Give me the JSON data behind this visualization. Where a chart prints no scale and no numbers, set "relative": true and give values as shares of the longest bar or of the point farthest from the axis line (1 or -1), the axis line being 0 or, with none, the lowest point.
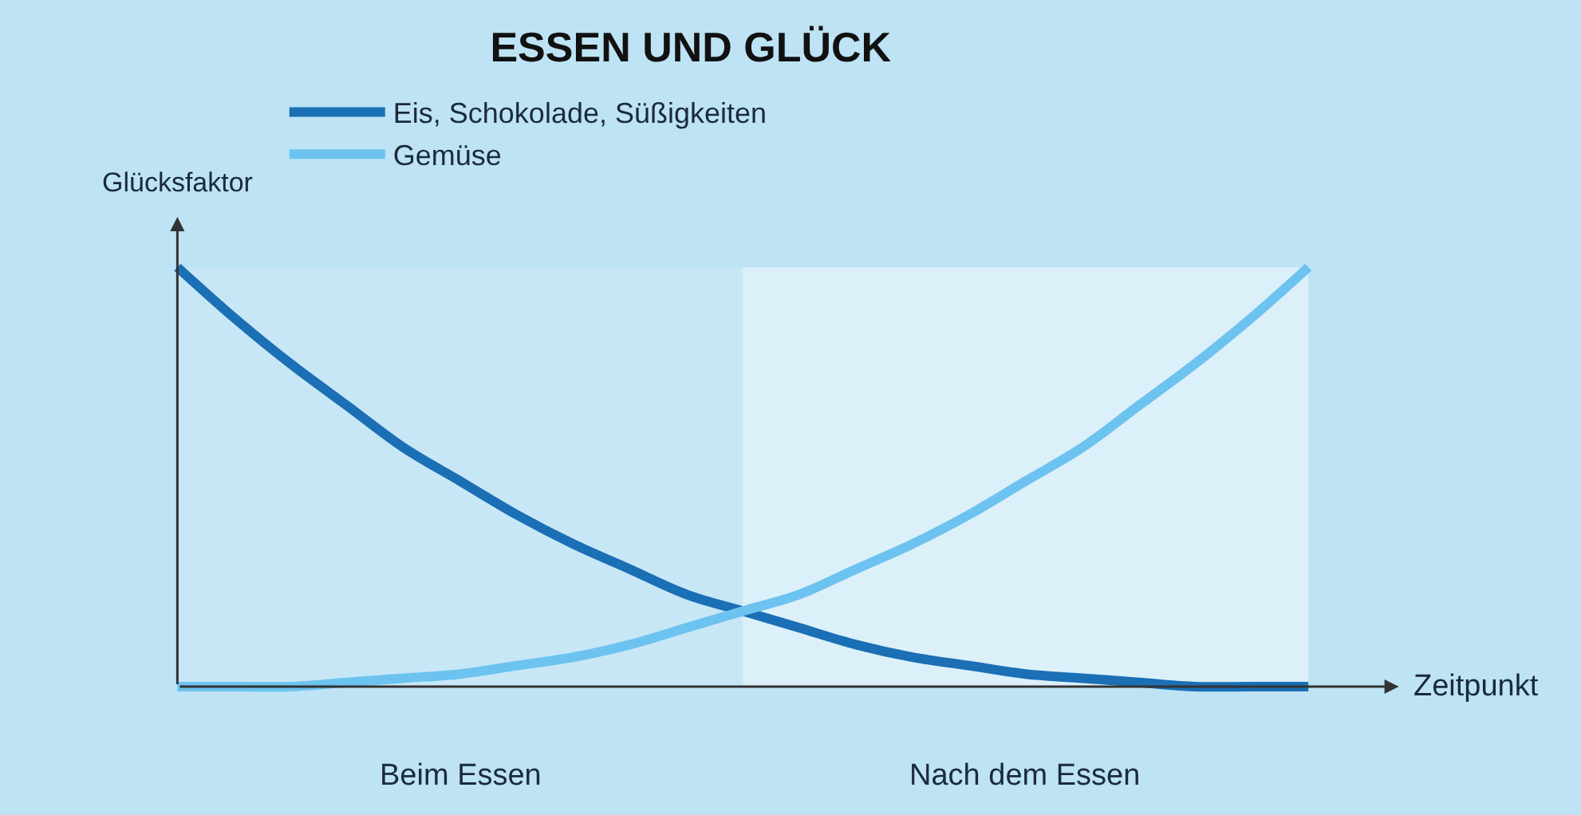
{
  "chart_data": {
    "type": "line",
    "title": "ESSEN UND GLÜCK",
    "xlabel": "Zeitpunkt",
    "ylabel": "Glücksfaktor",
    "relative": true,
    "categories": [
      null,
      null,
      null,
      null,
      null,
      null,
      null,
      null,
      null,
      null,
      null,
      null,
      null,
      null,
      null,
      null,
      null,
      null,
      null,
      null,
      null
    ],
    "series": [
      {
        "name": "Eis, Schokolade, Süßigkeiten",
        "color": "#1a6fb5",
        "values": [
          1,
          0.88,
          0.77,
          0.67,
          0.57,
          0.49,
          0.41,
          0.34,
          0.28,
          0.22,
          0.18,
          0.14,
          0.1,
          0.07,
          0.05,
          0.03,
          0.02,
          0.01,
          0,
          0,
          0
        ]
      },
      {
        "name": "Gemüse",
        "color": "#6cc3ef",
        "values": [
          0,
          0,
          0,
          0.01,
          0.02,
          0.03,
          0.05,
          0.07,
          0.1,
          0.14,
          0.18,
          0.22,
          0.28,
          0.34,
          0.41,
          0.49,
          0.57,
          0.67,
          0.77,
          0.88,
          1
        ]
      }
    ],
    "annotations": [
      "Beim Essen",
      "Nach dem Essen"
    ],
    "legend": "top",
    "line_style": "solid",
    "marker": "none"
  }
}
